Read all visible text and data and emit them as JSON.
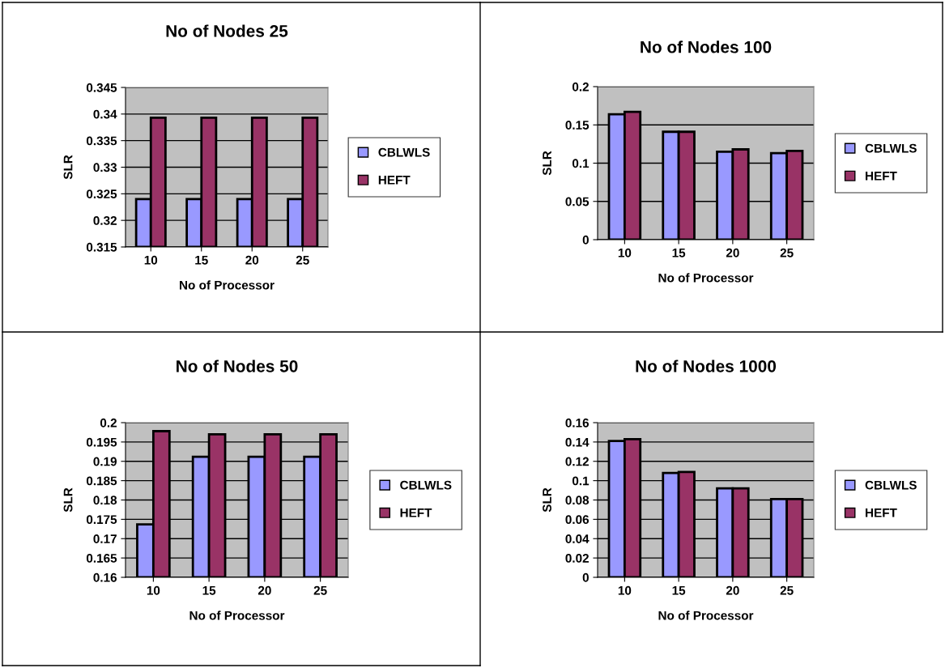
{
  "chart_data": [
    {
      "type": "bar",
      "title": "No of Nodes 25",
      "xlabel": "No of Processor",
      "ylabel": "SLR",
      "categories": [
        "10",
        "15",
        "20",
        "25"
      ],
      "ylim": [
        0.315,
        0.345
      ],
      "yticks": [
        0.315,
        0.32,
        0.325,
        0.33,
        0.335,
        0.34,
        0.345
      ],
      "grid": "y",
      "legend": "right",
      "series": [
        {
          "name": "CBLWLS",
          "color": "#9999ff",
          "values": [
            0.324,
            0.324,
            0.324,
            0.324
          ]
        },
        {
          "name": "HEFT",
          "color": "#993366",
          "values": [
            0.3393,
            0.3393,
            0.3393,
            0.3393
          ]
        }
      ]
    },
    {
      "type": "bar",
      "title": "No of Nodes 100",
      "xlabel": "No of Processor",
      "ylabel": "SLR",
      "categories": [
        "10",
        "15",
        "20",
        "25"
      ],
      "ylim": [
        0,
        0.2
      ],
      "yticks": [
        0,
        0.05,
        0.1,
        0.15,
        0.2
      ],
      "grid": "y",
      "legend": "right",
      "series": [
        {
          "name": "CBLWLS",
          "color": "#9999ff",
          "values": [
            0.164,
            0.141,
            0.115,
            0.113
          ]
        },
        {
          "name": "HEFT",
          "color": "#993366",
          "values": [
            0.167,
            0.141,
            0.118,
            0.116
          ]
        }
      ]
    },
    {
      "type": "bar",
      "title": "No of Nodes 50",
      "xlabel": "No of Processor",
      "ylabel": "SLR",
      "categories": [
        "10",
        "15",
        "20",
        "25"
      ],
      "ylim": [
        0.16,
        0.2
      ],
      "yticks": [
        0.16,
        0.165,
        0.17,
        0.175,
        0.18,
        0.185,
        0.19,
        0.195,
        0.2
      ],
      "grid": "y",
      "legend": "right",
      "series": [
        {
          "name": "CBLWLS",
          "color": "#9999ff",
          "values": [
            0.1737,
            0.1912,
            0.1912,
            0.1912
          ]
        },
        {
          "name": "HEFT",
          "color": "#993366",
          "values": [
            0.1978,
            0.197,
            0.197,
            0.197
          ]
        }
      ]
    },
    {
      "type": "bar",
      "title": "No of Nodes 1000",
      "xlabel": "No of Processor",
      "ylabel": "SLR",
      "categories": [
        "10",
        "15",
        "20",
        "25"
      ],
      "ylim": [
        0,
        0.16
      ],
      "yticks": [
        0,
        0.02,
        0.04,
        0.06,
        0.08,
        0.1,
        0.12,
        0.14,
        0.16
      ],
      "grid": "y",
      "legend": "right",
      "series": [
        {
          "name": "CBLWLS",
          "color": "#9999ff",
          "values": [
            0.141,
            0.108,
            0.092,
            0.081
          ]
        },
        {
          "name": "HEFT",
          "color": "#993366",
          "values": [
            0.143,
            0.109,
            0.092,
            0.081
          ]
        }
      ]
    }
  ]
}
